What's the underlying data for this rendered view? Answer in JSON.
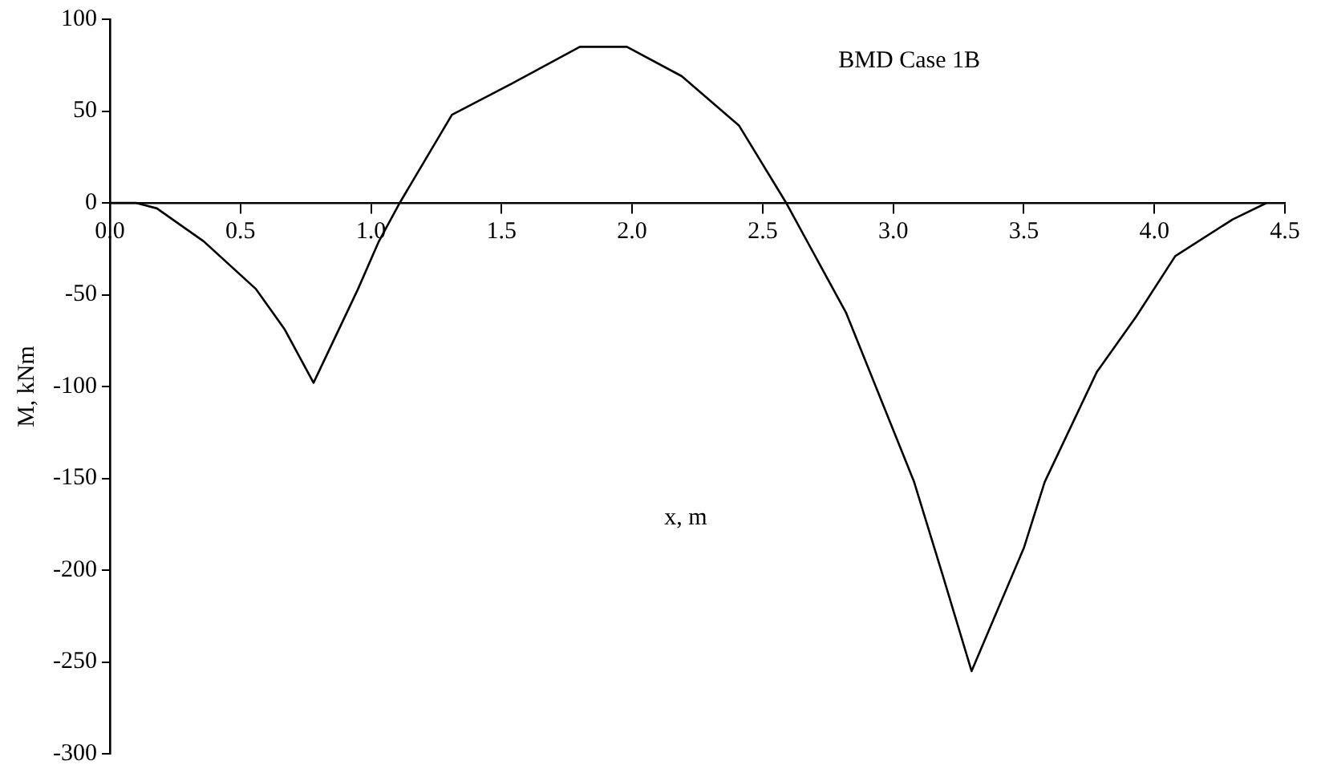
{
  "chart_data": {
    "type": "line",
    "title": "BMD Case 1B",
    "xlabel": "x, m",
    "ylabel": "M, kNm",
    "x": [
      0,
      0.1,
      0.18,
      0.36,
      0.56,
      0.67,
      0.78,
      0.95,
      1.03,
      1.11,
      1.31,
      1.54,
      1.8,
      1.98,
      2.19,
      2.41,
      2.59,
      2.82,
      3.08,
      3.19,
      3.3,
      3.5,
      3.58,
      3.78,
      3.93,
      4.08,
      4.3,
      4.43
    ],
    "series": [
      {
        "color": "#000000",
        "values": [
          0,
          0,
          -3,
          -21,
          -47,
          -69,
          -98,
          -47,
          -21,
          0,
          48,
          65,
          85,
          85,
          69,
          42,
          0,
          -60,
          -152,
          -203,
          -255,
          -188,
          -152,
          -92,
          -62,
          -29,
          -9,
          0
        ]
      }
    ],
    "xlim": [
      0,
      4.5
    ],
    "xticks": [
      {
        "value": 0,
        "label": "0.0"
      },
      {
        "value": 0.5,
        "label": "0.5"
      },
      {
        "value": 1,
        "label": "1.0"
      },
      {
        "value": 1.5,
        "label": "1.5"
      },
      {
        "value": 2,
        "label": "2.0"
      },
      {
        "value": 2.5,
        "label": "2.5"
      },
      {
        "value": 3,
        "label": "3.0"
      },
      {
        "value": 3.5,
        "label": "3.5"
      },
      {
        "value": 4,
        "label": "4.0"
      },
      {
        "value": 4.5,
        "label": "4.5"
      }
    ],
    "ylim": [
      -300,
      100
    ],
    "yticks": [
      -300,
      -250,
      -200,
      -150,
      -100,
      -50,
      0,
      50,
      100
    ],
    "grid": false,
    "legend": false,
    "marker": "none",
    "line_style": "solid"
  }
}
